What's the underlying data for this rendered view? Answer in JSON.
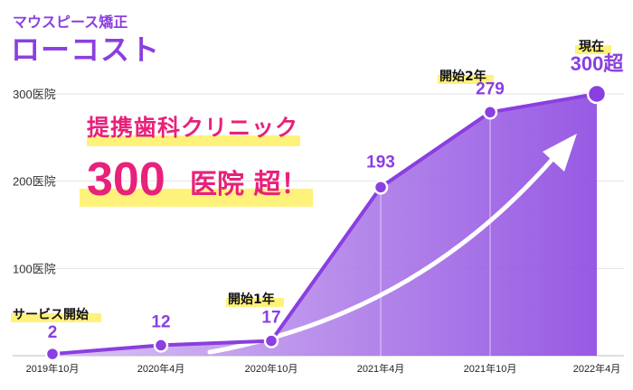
{
  "brand": {
    "title_top": "マウスピース矯正",
    "title_main": "ローコスト"
  },
  "headline": {
    "line1": "提携歯科クリニック",
    "number": "300",
    "suffix": "医院 超！"
  },
  "milestones": {
    "service_start": "サービス開始",
    "year1": "開始1年",
    "year2": "開始2年",
    "current": "現在"
  },
  "colors": {
    "accent_purple": "#8a3fe0",
    "headline_pink": "#e8217a",
    "highlight_yellow": "#fff27a",
    "area_light": "#c9a7ee",
    "area_dark": "#8c48e0"
  },
  "chart_data": {
    "type": "area",
    "x": [
      "2019年10月",
      "2020年4月",
      "2020年10月",
      "2021年4月",
      "2021年10月",
      "2022年4月"
    ],
    "values": [
      2,
      12,
      17,
      193,
      279,
      300
    ],
    "data_labels": [
      "2",
      "12",
      "17",
      "193",
      "279",
      "300超"
    ],
    "yticks": [
      "100医院",
      "200医院",
      "300医院"
    ],
    "ytick_values": [
      100,
      200,
      300
    ],
    "ylim": [
      0,
      300
    ],
    "grid": true,
    "trend_arrow": true
  }
}
